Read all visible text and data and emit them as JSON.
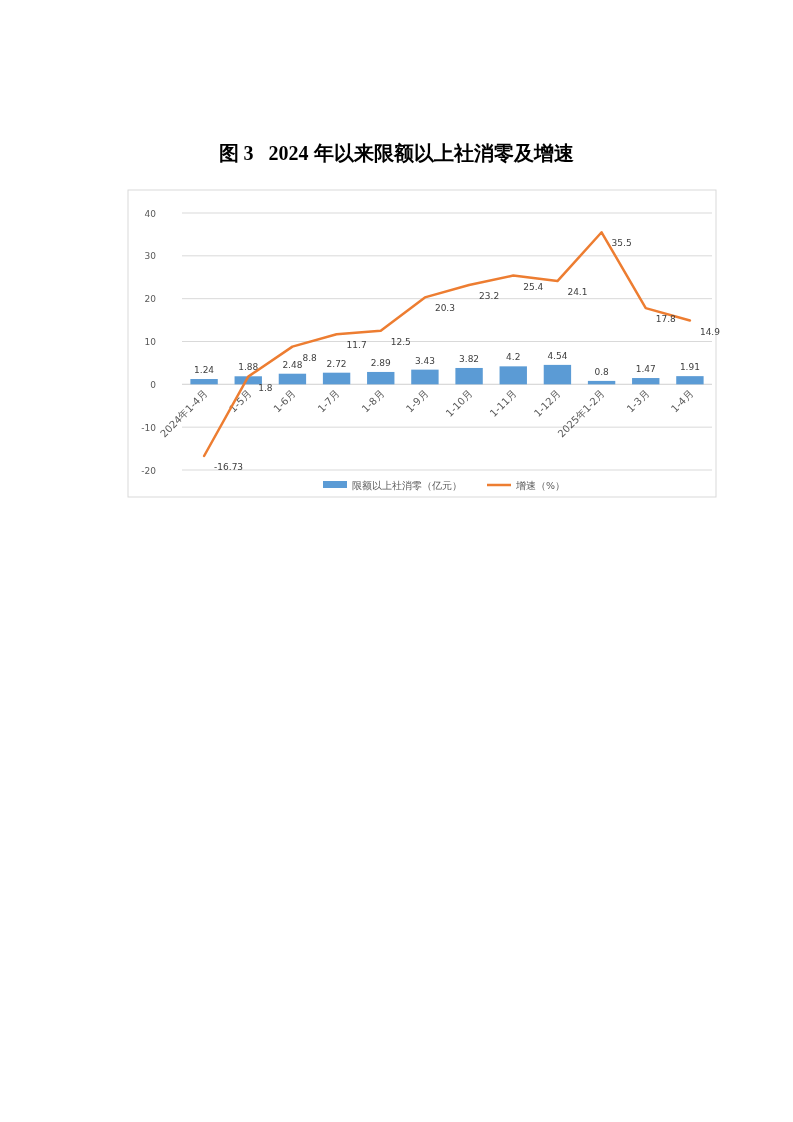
{
  "chart_data": {
    "type": "bar",
    "title": "图 3   2024 年以来限额以上社消零及增速",
    "categories": [
      "2024年1-4月",
      "1-5月",
      "1-6月",
      "1-7月",
      "1-8月",
      "1-9月",
      "1-10月",
      "1-11月",
      "1-12月",
      "2025年1-2月",
      "1-3月",
      "1-4月"
    ],
    "series": [
      {
        "name": "限额以上社消零（亿元）",
        "color": "#5b9bd5",
        "values": [
          1.24,
          1.88,
          2.48,
          2.72,
          2.89,
          3.43,
          3.82,
          4.2,
          4.54,
          0.8,
          1.47,
          1.91
        ]
      },
      {
        "name": "增速（%）",
        "type": "line",
        "color": "#ed7d31",
        "values": [
          -16.73,
          1.8,
          8.8,
          11.7,
          12.5,
          20.3,
          23.2,
          25.4,
          24.1,
          35.5,
          17.8,
          14.9
        ]
      }
    ],
    "ylim": [
      -20,
      40
    ],
    "yticks": [
      -20,
      -10,
      0,
      10,
      20,
      30,
      40
    ],
    "grid": "y",
    "legend": "bottom",
    "data_labels": true
  }
}
